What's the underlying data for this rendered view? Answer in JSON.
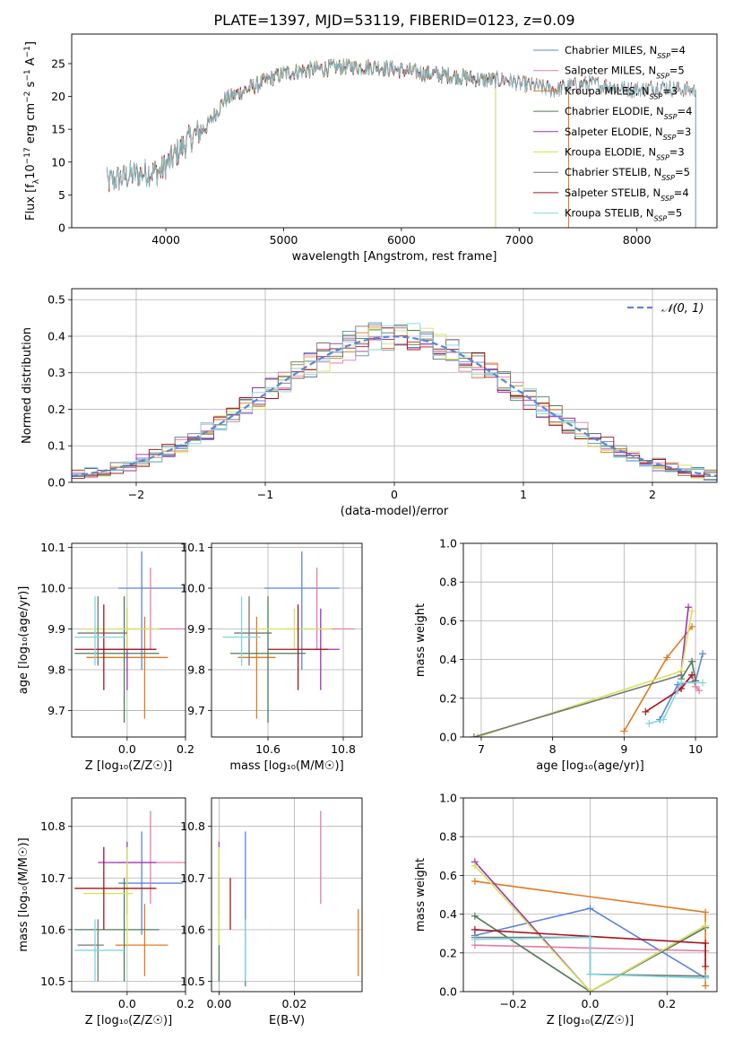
{
  "figure": {
    "title": "PLATE=1397, MJD=53119, FIBERID=0123, z=0.09"
  },
  "colors": {
    "Chabrier MILES": "#5b85d7",
    "Salpeter MILES": "#e07ca9",
    "Kroupa MILES": "#e07a1f",
    "Chabrier ELODIE": "#4f7b58",
    "Salpeter ELODIE": "#9a33b8",
    "Kroupa ELODIE": "#d6e35a",
    "Chabrier STELIB": "#777777",
    "Salpeter STELIB": "#a5141c",
    "Kroupa STELIB": "#7fd6de",
    "gaussian": "#5b85d7",
    "grid": "#b0b0b0"
  },
  "chart_data": [
    {
      "id": "spectrum",
      "type": "line",
      "title": "PLATE=1397, MJD=53119, FIBERID=0123, z=0.09",
      "xlabel": "wavelength [Angstrom, rest frame]",
      "ylabel_parts": [
        "Flux [f",
        "λ",
        "10",
        "−17",
        " erg cm",
        "−2",
        " s",
        "−1",
        " A",
        "−1",
        "]"
      ],
      "xlim": [
        3200,
        8680
      ],
      "ylim": [
        0,
        29.5
      ],
      "xticks": [
        4000,
        5000,
        6000,
        7000,
        8000
      ],
      "yticks": [
        0,
        5,
        10,
        15,
        20,
        25
      ],
      "grid": false,
      "legend_position": "top-right",
      "continuum_knots": {
        "x": [
          3500,
          3700,
          3850,
          3950,
          4050,
          4200,
          4350,
          4500,
          4800,
          5000,
          5200,
          5500,
          5800,
          6000,
          6200,
          6500,
          6700,
          6900,
          7000,
          7150,
          7300,
          7400,
          7600,
          7800,
          8000,
          8200,
          8400
        ],
        "y": [
          7.0,
          8.0,
          8.5,
          8.5,
          10.5,
          13.5,
          15.5,
          19.5,
          22.0,
          23.5,
          24.0,
          24.5,
          24.5,
          24.0,
          23.5,
          23.0,
          22.5,
          22.5,
          22.0,
          21.5,
          21.0,
          21.5,
          22.0,
          21.5,
          21.0,
          21.5,
          21.0
        ]
      },
      "series": [
        {
          "name": "Chabrier MILES",
          "nssp": "4",
          "xrange": [
            3500,
            7420
          ]
        },
        {
          "name": "Salpeter MILES",
          "nssp": "5",
          "xrange": [
            3500,
            7420
          ]
        },
        {
          "name": "Kroupa MILES",
          "nssp": "3",
          "xrange": [
            3500,
            7420
          ]
        },
        {
          "name": "Chabrier ELODIE",
          "nssp": "4",
          "xrange": [
            3900,
            6800
          ]
        },
        {
          "name": "Salpeter ELODIE",
          "nssp": "3",
          "xrange": [
            3900,
            6800
          ]
        },
        {
          "name": "Kroupa ELODIE",
          "nssp": "3",
          "xrange": [
            3900,
            6800
          ]
        },
        {
          "name": "Chabrier STELIB",
          "nssp": "5",
          "xrange": [
            3500,
            8500
          ]
        },
        {
          "name": "Salpeter STELIB",
          "nssp": "4",
          "xrange": [
            3500,
            8500
          ]
        },
        {
          "name": "Kroupa STELIB",
          "nssp": "5",
          "xrange": [
            3500,
            8500
          ]
        }
      ]
    },
    {
      "id": "residuals",
      "type": "histogram",
      "xlabel": "(data-model)/error",
      "ylabel": "Normed distribution",
      "xlim": [
        -2.5,
        2.5
      ],
      "ylim": [
        0,
        0.53
      ],
      "xticks": [
        -2,
        -1,
        0,
        1,
        2
      ],
      "xticklabels": [
        "−2",
        "−1",
        "0",
        "1",
        "2"
      ],
      "yticks": [
        0.0,
        0.1,
        0.2,
        0.3,
        0.4,
        0.5
      ],
      "yticklabels": [
        "0.0",
        "0.1",
        "0.2",
        "0.3",
        "0.4",
        "0.5"
      ],
      "grid": true,
      "legend_position": "top-right",
      "gaussian_label": "𝒩(0, 1)",
      "bin_edges_start": -2.5,
      "bin_width": 0.1,
      "bin_count": 50
    },
    {
      "id": "age_vs_Z",
      "type": "errorbar",
      "xlabel": "Z [log₁₀(Z/Z☉)]",
      "ylabel": "age  [log₁₀(age/yr)]",
      "xlim": [
        -0.19,
        0.2
      ],
      "ylim": [
        9.635,
        10.11
      ],
      "xticks": [
        0.0,
        0.2
      ],
      "xticklabels": [
        "0.0",
        "0.2"
      ],
      "yticks": [
        9.7,
        9.8,
        9.9,
        10.0,
        10.1
      ],
      "yticklabels": [
        "9.7",
        "9.8",
        "9.9",
        "10.0",
        "10.1"
      ],
      "grid": true,
      "points": [
        {
          "series": "Chabrier MILES",
          "x": 0.05,
          "xerr": [
            0.08,
            0.14
          ],
          "y": 10.0,
          "yerr": [
            0.2,
            0.09
          ]
        },
        {
          "series": "Salpeter MILES",
          "x": 0.08,
          "xerr": [
            0.11,
            0.12
          ],
          "y": 9.9,
          "yerr": [
            0.05,
            0.15
          ]
        },
        {
          "series": "Kroupa MILES",
          "x": 0.06,
          "xerr": [
            0.2,
            0.08
          ],
          "y": 9.83,
          "yerr": [
            0.15,
            0.1
          ]
        },
        {
          "series": "Chabrier ELODIE",
          "x": -0.01,
          "xerr": [
            0.17,
            0.12
          ],
          "y": 9.84,
          "yerr": [
            0.17,
            0.14
          ]
        },
        {
          "series": "Salpeter ELODIE",
          "x": 0.0,
          "xerr": [
            0.1,
            0.1
          ],
          "y": 9.85,
          "yerr": [
            0.1,
            0.1
          ]
        },
        {
          "series": "Kroupa ELODIE",
          "x": 0.0,
          "xerr": [
            0.15,
            0.11
          ],
          "y": 9.9,
          "yerr": [
            0.05,
            0.05
          ]
        },
        {
          "series": "Chabrier STELIB",
          "x": -0.1,
          "xerr": [
            0.07,
            0.1
          ],
          "y": 9.89,
          "yerr": [
            0.08,
            0.09
          ]
        },
        {
          "series": "Salpeter STELIB",
          "x": -0.08,
          "xerr": [
            0.1,
            0.18
          ],
          "y": 9.85,
          "yerr": [
            0.1,
            0.11
          ]
        },
        {
          "series": "Kroupa STELIB",
          "x": -0.11,
          "xerr": [
            0.07,
            0.1
          ],
          "y": 9.88,
          "yerr": [
            0.07,
            0.1
          ]
        }
      ]
    },
    {
      "id": "age_vs_mass",
      "type": "errorbar",
      "xlabel": "mass [log₁₀(M/M☉)]",
      "ylabel": "",
      "xlim": [
        10.45,
        10.85
      ],
      "ylim": [
        9.635,
        10.11
      ],
      "xticks": [
        10.6,
        10.8
      ],
      "xticklabels": [
        "10.6",
        "10.8"
      ],
      "yticks": [
        9.7,
        9.8,
        9.9,
        10.0,
        10.1
      ],
      "yticklabels": [
        "9.7",
        "9.8",
        "9.9",
        "10.0",
        "10.1"
      ],
      "grid": true,
      "points": [
        {
          "series": "Chabrier MILES",
          "x": 10.69,
          "xerr": [
            0.1,
            0.1
          ],
          "y": 10.0,
          "yerr": [
            0.2,
            0.09
          ]
        },
        {
          "series": "Salpeter MILES",
          "x": 10.73,
          "xerr": [
            0.08,
            0.1
          ],
          "y": 9.9,
          "yerr": [
            0.05,
            0.15
          ]
        },
        {
          "series": "Kroupa MILES",
          "x": 10.57,
          "xerr": [
            0.05,
            0.05
          ],
          "y": 9.83,
          "yerr": [
            0.15,
            0.1
          ]
        },
        {
          "series": "Chabrier ELODIE",
          "x": 10.6,
          "xerr": [
            0.1,
            0.1
          ],
          "y": 9.84,
          "yerr": [
            0.17,
            0.14
          ]
        },
        {
          "series": "Salpeter ELODIE",
          "x": 10.74,
          "xerr": [
            0.05,
            0.05
          ],
          "y": 9.85,
          "yerr": [
            0.1,
            0.1
          ]
        },
        {
          "series": "Kroupa ELODIE",
          "x": 10.67,
          "xerr": [
            0.1,
            0.1
          ],
          "y": 9.9,
          "yerr": [
            0.05,
            0.05
          ]
        },
        {
          "series": "Chabrier STELIB",
          "x": 10.55,
          "xerr": [
            0.04,
            0.06
          ],
          "y": 9.89,
          "yerr": [
            0.08,
            0.09
          ]
        },
        {
          "series": "Salpeter STELIB",
          "x": 10.68,
          "xerr": [
            0.08,
            0.08
          ],
          "y": 9.85,
          "yerr": [
            0.1,
            0.11
          ]
        },
        {
          "series": "Kroupa STELIB",
          "x": 10.53,
          "xerr": [
            0.05,
            0.05
          ],
          "y": 9.88,
          "yerr": [
            0.07,
            0.1
          ]
        }
      ]
    },
    {
      "id": "weight_vs_age",
      "type": "line",
      "xlabel": "age  [log₁₀(age/yr)]",
      "ylabel": "mass weight",
      "xlim": [
        6.75,
        10.3
      ],
      "ylim": [
        0,
        1.0
      ],
      "xticks": [
        7,
        8,
        9,
        10
      ],
      "xticklabels": [
        "7",
        "8",
        "9",
        "10"
      ],
      "yticks": [
        0.0,
        0.2,
        0.4,
        0.6,
        0.8,
        1.0
      ],
      "yticklabels": [
        "0.0",
        "0.2",
        "0.4",
        "0.6",
        "0.8",
        "1.0"
      ],
      "grid": true,
      "series": [
        {
          "name": "Chabrier MILES",
          "x": [
            9.5,
            9.75,
            10.0,
            10.1
          ],
          "y": [
            0.09,
            0.27,
            0.29,
            0.43
          ]
        },
        {
          "name": "Salpeter MILES",
          "x": [
            9.75,
            9.95,
            10.0,
            10.05
          ],
          "y": [
            0.24,
            0.32,
            0.26,
            0.24
          ]
        },
        {
          "name": "Kroupa MILES",
          "x": [
            9.0,
            9.6,
            9.95
          ],
          "y": [
            0.03,
            0.41,
            0.57
          ]
        },
        {
          "name": "Chabrier ELODIE",
          "x": [
            9.8,
            9.95,
            10.0
          ],
          "y": [
            0.3,
            0.39,
            0.29
          ]
        },
        {
          "name": "Salpeter ELODIE",
          "x": [
            9.8,
            9.9
          ],
          "y": [
            0.34,
            0.67
          ]
        },
        {
          "name": "Kroupa ELODIE",
          "x": [
            6.95,
            9.8,
            9.95
          ],
          "y": [
            0.0,
            0.34,
            0.65
          ]
        },
        {
          "name": "Chabrier STELIB",
          "x": [
            6.9,
            9.8
          ],
          "y": [
            0.0,
            0.32
          ]
        },
        {
          "name": "Salpeter STELIB",
          "x": [
            9.3,
            9.8,
            9.95
          ],
          "y": [
            0.13,
            0.25,
            0.32
          ]
        },
        {
          "name": "Kroupa STELIB",
          "x": [
            9.35,
            9.55,
            9.8,
            10.1
          ],
          "y": [
            0.07,
            0.09,
            0.28,
            0.28
          ]
        }
      ]
    },
    {
      "id": "mass_vs_Z",
      "type": "errorbar",
      "xlabel": "Z [log₁₀(Z/Z☉)]",
      "ylabel": "mass [log₁₀(M/M☉)]",
      "xlim": [
        -0.19,
        0.2
      ],
      "ylim": [
        10.48,
        10.855
      ],
      "xticks": [
        0.0,
        0.2
      ],
      "xticklabels": [
        "0.0",
        "0.2"
      ],
      "yticks": [
        10.5,
        10.6,
        10.7,
        10.8
      ],
      "yticklabels": [
        "10.5",
        "10.6",
        "10.7",
        "10.8"
      ],
      "grid": true,
      "points": [
        {
          "series": "Chabrier MILES",
          "x": 0.05,
          "xerr": [
            0.08,
            0.14
          ],
          "y": 10.69,
          "yerr": [
            0.1,
            0.1
          ]
        },
        {
          "series": "Salpeter MILES",
          "x": 0.08,
          "xerr": [
            0.11,
            0.12
          ],
          "y": 10.73,
          "yerr": [
            0.08,
            0.1
          ]
        },
        {
          "series": "Kroupa MILES",
          "x": 0.06,
          "xerr": [
            0.1,
            0.08
          ],
          "y": 10.57,
          "yerr": [
            0.06,
            0.08
          ]
        },
        {
          "series": "Chabrier ELODIE",
          "x": -0.01,
          "xerr": [
            0.17,
            0.12
          ],
          "y": 10.6,
          "yerr": [
            0.1,
            0.1
          ]
        },
        {
          "series": "Salpeter ELODIE",
          "x": 0.0,
          "xerr": [
            0.1,
            0.1
          ],
          "y": 10.73,
          "yerr": [
            0.1,
            0.04
          ]
        },
        {
          "series": "Kroupa ELODIE",
          "x": 0.0,
          "xerr": [
            0.15,
            0.02
          ],
          "y": 10.67,
          "yerr": [
            0.1,
            0.09
          ]
        },
        {
          "series": "Chabrier STELIB",
          "x": -0.1,
          "xerr": [
            0.07,
            0.02
          ],
          "y": 10.57,
          "yerr": [
            0.07,
            0.05
          ]
        },
        {
          "series": "Salpeter STELIB",
          "x": -0.08,
          "xerr": [
            0.1,
            0.18
          ],
          "y": 10.68,
          "yerr": [
            0.08,
            0.08
          ]
        },
        {
          "series": "Kroupa STELIB",
          "x": -0.11,
          "xerr": [
            0.07,
            0.1
          ],
          "y": 10.56,
          "yerr": [
            0.06,
            0.06
          ]
        }
      ]
    },
    {
      "id": "mass_vs_ebv",
      "type": "errorbar",
      "xlabel": "E(B-V)",
      "ylabel": "",
      "xlim": [
        -0.002,
        0.038
      ],
      "ylim": [
        10.48,
        10.855
      ],
      "xticks": [
        0.0,
        0.02
      ],
      "xticklabels": [
        "0.00",
        "0.02"
      ],
      "yticks": [
        10.5,
        10.6,
        10.7,
        10.8
      ],
      "yticklabels": [
        "10.5",
        "10.6",
        "10.7",
        "10.8"
      ],
      "grid": true,
      "points": [
        {
          "series": "Chabrier MILES",
          "x": 0.007,
          "y": 10.69,
          "yerr": [
            0.1,
            0.1
          ]
        },
        {
          "series": "Salpeter MILES",
          "x": 0.027,
          "y": 10.73,
          "yerr": [
            0.08,
            0.1
          ]
        },
        {
          "series": "Kroupa MILES",
          "x": 0.037,
          "y": 10.57,
          "yerr": [
            0.06,
            0.07
          ]
        },
        {
          "series": "Chabrier ELODIE",
          "x": 0.0,
          "y": 10.6,
          "yerr": [
            0.1,
            0.1
          ]
        },
        {
          "series": "Salpeter ELODIE",
          "x": 0.0,
          "y": 10.73,
          "yerr": [
            0.1,
            0.04
          ]
        },
        {
          "series": "Kroupa ELODIE",
          "x": 0.0,
          "y": 10.67,
          "yerr": [
            0.1,
            0.09
          ]
        },
        {
          "series": "Chabrier STELIB",
          "x": 0.007,
          "y": 10.56,
          "yerr": [
            0.07,
            0.06
          ]
        },
        {
          "series": "Salpeter STELIB",
          "x": 0.003,
          "y": 10.65,
          "yerr": [
            0.05,
            0.05
          ]
        },
        {
          "series": "Kroupa STELIB",
          "x": 0.007,
          "y": 10.56,
          "yerr": [
            0.06,
            0.06
          ]
        }
      ]
    },
    {
      "id": "weight_vs_Z",
      "type": "line",
      "xlabel": "Z [log₁₀(Z/Z☉)]",
      "ylabel": "mass weight",
      "xlim": [
        -0.33,
        0.33
      ],
      "ylim": [
        0,
        1.0
      ],
      "xticks": [
        -0.2,
        0.0,
        0.2
      ],
      "xticklabels": [
        "−0.2",
        "0.0",
        "0.2"
      ],
      "yticks": [
        0.0,
        0.2,
        0.4,
        0.6,
        0.8,
        1.0
      ],
      "yticklabels": [
        "0.0",
        "0.2",
        "0.4",
        "0.6",
        "0.8",
        "1.0"
      ],
      "grid": true,
      "series": [
        {
          "name": "Chabrier MILES",
          "x": [
            -0.3,
            0.0,
            0.3
          ],
          "y": [
            0.29,
            0.43,
            0.07
          ]
        },
        {
          "name": "Salpeter MILES",
          "x": [
            -0.3,
            0.3
          ],
          "y": [
            0.24,
            0.21
          ]
        },
        {
          "name": "Kroupa MILES",
          "x": [
            -0.3,
            0.3,
            0.3
          ],
          "y": [
            0.57,
            0.41,
            0.03
          ]
        },
        {
          "name": "Chabrier ELODIE",
          "x": [
            -0.3,
            0.0,
            0.3
          ],
          "y": [
            0.39,
            0.0,
            0.33
          ]
        },
        {
          "name": "Salpeter ELODIE",
          "x": [
            -0.3,
            0.0,
            0.3
          ],
          "y": [
            0.67,
            0.0,
            0.34
          ]
        },
        {
          "name": "Kroupa ELODIE",
          "x": [
            -0.3,
            0.0,
            0.3
          ],
          "y": [
            0.65,
            0.0,
            0.34
          ]
        },
        {
          "name": "Chabrier STELIB",
          "x": [
            -0.3,
            0.0,
            0.0,
            0.3
          ],
          "y": [
            0.28,
            0.28,
            0.09,
            0.08
          ]
        },
        {
          "name": "Salpeter STELIB",
          "x": [
            -0.3,
            0.3,
            0.3
          ],
          "y": [
            0.32,
            0.25,
            0.13
          ]
        },
        {
          "name": "Kroupa STELIB",
          "x": [
            -0.3,
            0.0,
            0.0,
            0.3
          ],
          "y": [
            0.27,
            0.28,
            0.09,
            0.07
          ]
        }
      ]
    }
  ]
}
